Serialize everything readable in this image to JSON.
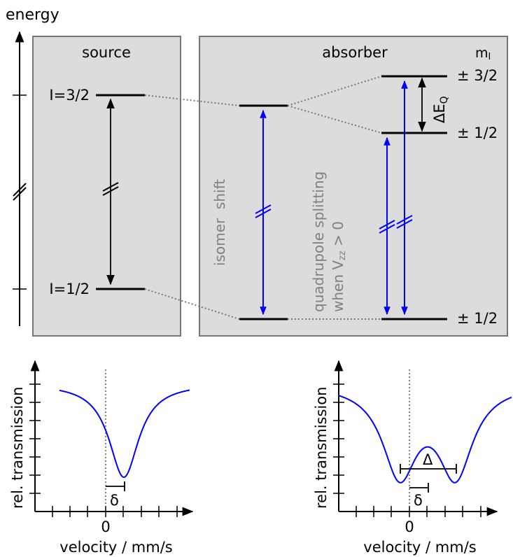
{
  "energy_diagram": {
    "axis_label": "energy",
    "source_title": "source",
    "absorber_title": "absorber",
    "mi_header": "m",
    "mi_subscript": "I",
    "level_upper": "I=3/2",
    "level_lower": "I=1/2",
    "mi_upper_split": "± 3/2",
    "mi_middle_split": "± 1/2",
    "mi_ground": "± 1/2",
    "delta_eq": "ΔE",
    "delta_eq_subscript": "Q",
    "isomer_shift": "isomer  shift",
    "quad_line1": "quadrupole splitting",
    "quad_line2_prefix": "when V",
    "quad_line2_subscript": "zz",
    "quad_line2_suffix": " > 0",
    "colors": {
      "transition": "#0000ff",
      "box_fill": "#dcdcdc",
      "box_stroke": "#777777",
      "annotation_text": "#808080"
    }
  },
  "chart_data": [
    {
      "type": "line",
      "ylabel": "rel. transmission",
      "xlabel": "velocity / mm/s",
      "x_tick_label": "0",
      "shift_label": "δ",
      "dip_count": 1,
      "series_color": "#0000ff"
    },
    {
      "type": "line",
      "ylabel": "rel. transmission",
      "xlabel": "velocity / mm/s",
      "x_tick_label": "0",
      "shift_label": "δ",
      "splitting_label": "Δ",
      "dip_count": 2,
      "series_color": "#0000ff"
    }
  ]
}
